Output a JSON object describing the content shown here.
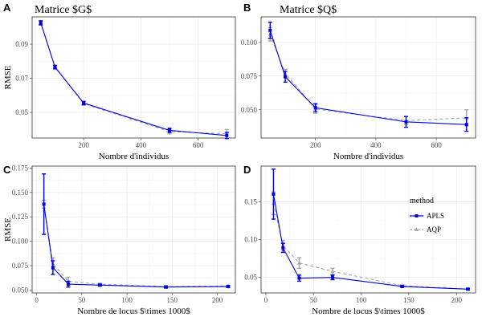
{
  "colors": {
    "APLS": "#0000dd",
    "AQP": "#a6a6a6"
  },
  "legend": {
    "title": "method",
    "items": [
      {
        "label": "APLS",
        "series": "APLS"
      },
      {
        "label": "AQP",
        "series": "AQP"
      }
    ]
  },
  "chart_data": [
    {
      "letter": "A",
      "type": "line",
      "title": "Matrice $G$",
      "xlabel": "Nombre d'individus",
      "ylabel": "RMSE",
      "xlim": [
        20,
        730
      ],
      "ylim": [
        0.035,
        0.106
      ],
      "xticks": [
        200,
        400,
        600
      ],
      "xtick_labels": [
        "200",
        "400",
        "600"
      ],
      "yticks": [
        0.05,
        0.07,
        0.09
      ],
      "ytick_labels": [
        "0.05",
        "0.07",
        "0.09"
      ],
      "grid": true,
      "series": [
        {
          "name": "APLS",
          "style": "solid",
          "marker": "square",
          "x": [
            50,
            100,
            200,
            500,
            700
          ],
          "y": [
            0.1025,
            0.0765,
            0.0555,
            0.0395,
            0.0365
          ],
          "err": [
            0.0012,
            0.001,
            0.001,
            0.0012,
            0.0018
          ]
        },
        {
          "name": "AQP",
          "style": "dashed",
          "marker": "triangle",
          "x": [
            50,
            100,
            200,
            500,
            700
          ],
          "y": [
            0.1025,
            0.0768,
            0.0552,
            0.0388,
            0.0375
          ],
          "err": [
            0.0012,
            0.001,
            0.001,
            0.0014,
            0.0025
          ]
        }
      ]
    },
    {
      "letter": "B",
      "type": "line",
      "title": "Matrice $Q$",
      "xlabel": "Nombre d'individus",
      "ylabel": "",
      "xlim": [
        20,
        730
      ],
      "ylim": [
        0.029,
        0.119
      ],
      "xticks": [
        200,
        400,
        600
      ],
      "xtick_labels": [
        "200",
        "400",
        "600"
      ],
      "yticks": [
        0.05,
        0.075,
        0.1
      ],
      "ytick_labels": [
        "0.050",
        "0.075",
        "0.100"
      ],
      "grid": true,
      "series": [
        {
          "name": "APLS",
          "style": "solid",
          "marker": "square",
          "x": [
            50,
            100,
            200,
            500,
            700
          ],
          "y": [
            0.109,
            0.0745,
            0.0515,
            0.041,
            0.039
          ],
          "err": [
            0.006,
            0.004,
            0.003,
            0.004,
            0.005
          ]
        },
        {
          "name": "AQP",
          "style": "dashed",
          "marker": "triangle",
          "x": [
            50,
            100,
            200,
            500,
            700
          ],
          "y": [
            0.106,
            0.077,
            0.0505,
            0.042,
            0.044
          ],
          "err": [
            0.005,
            0.003,
            0.003,
            0.003,
            0.006
          ]
        }
      ]
    },
    {
      "letter": "C",
      "type": "line",
      "title": "",
      "xlabel": "Nombre de locus $\\times 1000$",
      "ylabel": "RMSE",
      "xlim": [
        -5,
        220
      ],
      "ylim": [
        0.047,
        0.177
      ],
      "xticks": [
        0,
        50,
        100,
        150,
        200
      ],
      "xtick_labels": [
        "0",
        "50",
        "100",
        "150",
        "200"
      ],
      "yticks": [
        0.05,
        0.075,
        0.1,
        0.125,
        0.15,
        0.175
      ],
      "ytick_labels": [
        "0.050",
        "0.075",
        "0.100",
        "0.125",
        "0.150",
        "0.175"
      ],
      "grid": true,
      "series": [
        {
          "name": "APLS",
          "style": "solid",
          "marker": "square",
          "x": [
            8,
            18,
            35,
            70,
            143,
            212
          ],
          "y": [
            0.138,
            0.073,
            0.056,
            0.055,
            0.053,
            0.0535
          ],
          "err": [
            0.031,
            0.007,
            0.003,
            0.001,
            0.001,
            0.001
          ]
        },
        {
          "name": "AQP",
          "style": "dashed",
          "marker": "triangle",
          "x": [
            8,
            18,
            35,
            70,
            143,
            212
          ],
          "y": [
            0.138,
            0.077,
            0.059,
            0.056,
            0.0535,
            0.054
          ],
          "err": [
            0.004,
            0.006,
            0.004,
            0.001,
            0.001,
            0.001
          ]
        }
      ]
    },
    {
      "letter": "D",
      "type": "line",
      "title": "",
      "xlabel": "Nombre de locus $\\times 1000$",
      "ylabel": "",
      "xlim": [
        -5,
        220
      ],
      "ylim": [
        0.0295,
        0.197
      ],
      "xticks": [
        0,
        50,
        100,
        150,
        200
      ],
      "xtick_labels": [
        "0",
        "50",
        "100",
        "150",
        "200"
      ],
      "yticks": [
        0.05,
        0.1,
        0.15
      ],
      "ytick_labels": [
        "0.05",
        "0.10",
        "0.15"
      ],
      "grid": true,
      "series": [
        {
          "name": "APLS",
          "style": "solid",
          "marker": "square",
          "x": [
            8,
            18,
            35,
            70,
            143,
            212
          ],
          "y": [
            0.16,
            0.089,
            0.049,
            0.05,
            0.038,
            0.0345
          ],
          "err": [
            0.033,
            0.006,
            0.004,
            0.003,
            0.001,
            0.001
          ]
        },
        {
          "name": "AQP",
          "style": "dashed",
          "marker": "triangle",
          "x": [
            8,
            18,
            35,
            70,
            143,
            212
          ],
          "y": [
            0.148,
            0.092,
            0.069,
            0.058,
            0.039,
            0.0345
          ],
          "err": [
            0.015,
            0.007,
            0.007,
            0.004,
            0.001,
            0.001
          ]
        }
      ]
    }
  ]
}
